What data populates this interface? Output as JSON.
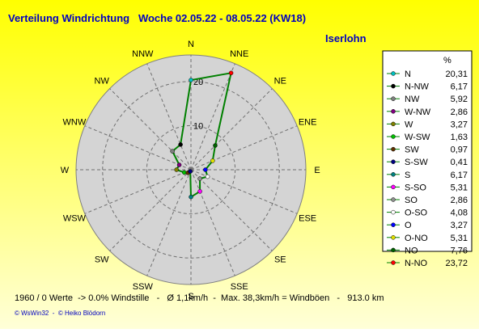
{
  "chart_data": {
    "type": "radar",
    "title": "Verteilung Windrichtung   Woche 02.05.22 - 08.05.22 (KW18)",
    "subtitle": "Iserlohn",
    "axis_labels": [
      "N",
      "NNE",
      "NE",
      "ENE",
      "E",
      "ESE",
      "SE",
      "SSE",
      "S",
      "SSW",
      "SW",
      "WSW",
      "W",
      "WNW",
      "NW",
      "NNW"
    ],
    "rlim": [
      0,
      26
    ],
    "rticks": [
      10,
      20
    ],
    "line_color": "#008000",
    "legend_title": "%",
    "series": {
      "names": [
        "N",
        "N-NW",
        "NW",
        "W-NW",
        "W",
        "W-SW",
        "SW",
        "S-SW",
        "S",
        "S-SO",
        "SO",
        "O-SO",
        "O",
        "O-NO",
        "NO",
        "N-NO"
      ],
      "values": [
        20.31,
        6.17,
        5.92,
        2.86,
        3.27,
        1.63,
        0.97,
        0.41,
        6.17,
        5.31,
        2.86,
        4.08,
        3.27,
        5.31,
        7.76,
        23.72
      ],
      "value_labels": [
        "20,31",
        "6,17",
        "5,92",
        "2,86",
        "3,27",
        "1,63",
        "0,97",
        "0,41",
        "6,17",
        "5,31",
        "2,86",
        "4,08",
        "3,27",
        "5,31",
        "7,76",
        "23,72"
      ],
      "colors": [
        "#00c0c0",
        "#000000",
        "#808080",
        "#800080",
        "#808000",
        "#00c000",
        "#603000",
        "#000080",
        "#008080",
        "#ff00ff",
        "#909090",
        "#ffffff",
        "#0000ff",
        "#e0e000",
        "#006000",
        "#ff0000"
      ]
    },
    "footer": "1960 / 0 Werte  -> 0.0% Windstille   -   Ø 1,1km/h  -  Max. 38,3km/h = Windböen   -   913.0 km",
    "copyright": "© WsWin32  -  © Heiko Blödorn"
  }
}
